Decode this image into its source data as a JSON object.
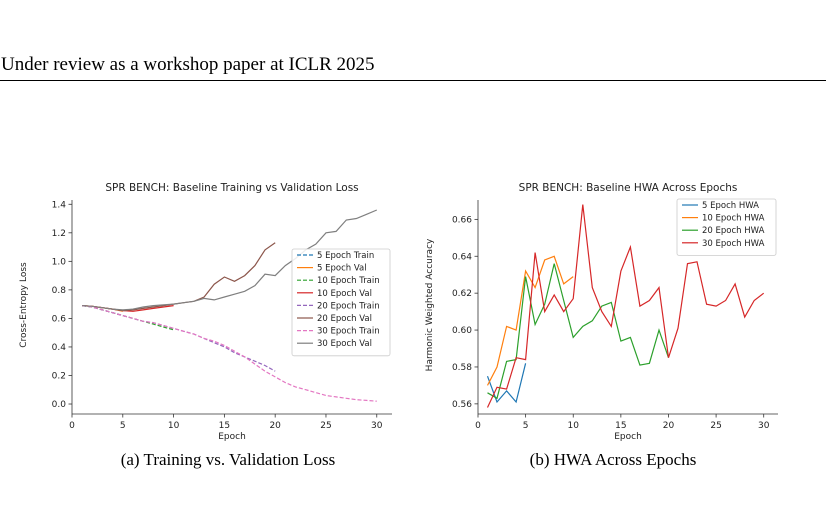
{
  "header": {
    "text": "Under review as a workshop paper at ICLR 2025"
  },
  "captions": [
    "(a) Training vs. Validation Loss",
    "(b) HWA Across Epochs"
  ],
  "chart_data": [
    {
      "type": "line",
      "title": "SPR BENCH: Baseline Training vs Validation Loss",
      "xlabel": "Epoch",
      "ylabel": "Cross-Entropy Loss",
      "xlim": [
        0,
        31.5
      ],
      "ylim": [
        -0.07,
        1.43
      ],
      "xticks": [
        0,
        5,
        10,
        15,
        20,
        25,
        30
      ],
      "yticks": [
        0.0,
        0.2,
        0.4,
        0.6,
        0.8,
        1.0,
        1.2,
        1.4
      ],
      "grid": false,
      "legend": "center-right",
      "series": [
        {
          "name": "5 Epoch Train",
          "color": "#1f77b4",
          "dash": true,
          "x": [
            1,
            2,
            3,
            4,
            5
          ],
          "y": [
            0.69,
            0.68,
            0.66,
            0.64,
            0.62
          ]
        },
        {
          "name": "5 Epoch Val",
          "color": "#ff7f0e",
          "dash": false,
          "x": [
            1,
            2,
            3,
            4,
            5
          ],
          "y": [
            0.69,
            0.685,
            0.675,
            0.665,
            0.65
          ]
        },
        {
          "name": "10 Epoch Train",
          "color": "#2ca02c",
          "dash": true,
          "x": [
            1,
            2,
            3,
            4,
            5,
            6,
            7,
            8,
            9,
            10
          ],
          "y": [
            0.69,
            0.68,
            0.66,
            0.64,
            0.62,
            0.6,
            0.58,
            0.56,
            0.54,
            0.52
          ]
        },
        {
          "name": "10 Epoch Val",
          "color": "#d62728",
          "dash": false,
          "x": [
            1,
            2,
            3,
            4,
            5,
            6,
            7,
            8,
            9,
            10
          ],
          "y": [
            0.69,
            0.685,
            0.675,
            0.665,
            0.655,
            0.65,
            0.66,
            0.67,
            0.68,
            0.69
          ]
        },
        {
          "name": "20 Epoch Train",
          "color": "#9467bd",
          "dash": true,
          "x": [
            1,
            2,
            3,
            4,
            5,
            6,
            7,
            8,
            9,
            10,
            11,
            12,
            13,
            14,
            15,
            16,
            17,
            18,
            19,
            20
          ],
          "y": [
            0.69,
            0.68,
            0.66,
            0.64,
            0.62,
            0.6,
            0.58,
            0.57,
            0.55,
            0.53,
            0.51,
            0.49,
            0.46,
            0.43,
            0.4,
            0.36,
            0.33,
            0.3,
            0.27,
            0.23
          ]
        },
        {
          "name": "20 Epoch Val",
          "color": "#8c564b",
          "dash": false,
          "x": [
            1,
            2,
            3,
            4,
            5,
            6,
            7,
            8,
            9,
            10,
            11,
            12,
            13,
            14,
            15,
            16,
            17,
            18,
            19,
            20
          ],
          "y": [
            0.69,
            0.685,
            0.675,
            0.665,
            0.655,
            0.66,
            0.67,
            0.68,
            0.69,
            0.7,
            0.71,
            0.72,
            0.75,
            0.84,
            0.89,
            0.86,
            0.9,
            0.97,
            1.08,
            1.13
          ]
        },
        {
          "name": "30 Epoch Train",
          "color": "#e377c2",
          "dash": true,
          "x": [
            1,
            2,
            3,
            4,
            5,
            6,
            7,
            8,
            9,
            10,
            11,
            12,
            13,
            14,
            15,
            16,
            17,
            18,
            19,
            20,
            21,
            22,
            23,
            24,
            25,
            26,
            27,
            28,
            29,
            30
          ],
          "y": [
            0.69,
            0.68,
            0.66,
            0.64,
            0.62,
            0.6,
            0.58,
            0.57,
            0.55,
            0.53,
            0.51,
            0.49,
            0.46,
            0.44,
            0.41,
            0.37,
            0.33,
            0.28,
            0.23,
            0.19,
            0.15,
            0.12,
            0.1,
            0.08,
            0.06,
            0.05,
            0.04,
            0.03,
            0.025,
            0.02
          ]
        },
        {
          "name": "30 Epoch Val",
          "color": "#7f7f7f",
          "dash": false,
          "x": [
            1,
            2,
            3,
            4,
            5,
            6,
            7,
            8,
            9,
            10,
            11,
            12,
            13,
            14,
            15,
            16,
            17,
            18,
            19,
            20,
            21,
            22,
            23,
            24,
            25,
            26,
            27,
            28,
            29,
            30
          ],
          "y": [
            0.69,
            0.685,
            0.675,
            0.665,
            0.66,
            0.665,
            0.68,
            0.69,
            0.695,
            0.7,
            0.71,
            0.72,
            0.74,
            0.73,
            0.75,
            0.77,
            0.79,
            0.83,
            0.91,
            0.9,
            0.97,
            1.02,
            1.08,
            1.12,
            1.2,
            1.21,
            1.29,
            1.3,
            1.33,
            1.36
          ]
        }
      ]
    },
    {
      "type": "line",
      "title": "SPR BENCH: Baseline HWA Across Epochs",
      "xlabel": "Epoch",
      "ylabel": "Harmonic Weighted Accuracy",
      "xlim": [
        0,
        31.5
      ],
      "ylim": [
        0.5545,
        0.6705
      ],
      "xticks": [
        0,
        5,
        10,
        15,
        20,
        25,
        30
      ],
      "yticks": [
        0.56,
        0.58,
        0.6,
        0.62,
        0.64,
        0.66
      ],
      "grid": false,
      "legend": "top-right",
      "series": [
        {
          "name": "5 Epoch HWA",
          "color": "#1f77b4",
          "dash": false,
          "x": [
            1,
            2,
            3,
            4,
            5
          ],
          "y": [
            0.575,
            0.561,
            0.567,
            0.561,
            0.582
          ]
        },
        {
          "name": "10 Epoch HWA",
          "color": "#ff7f0e",
          "dash": false,
          "x": [
            1,
            2,
            3,
            4,
            5,
            6,
            7,
            8,
            9,
            10
          ],
          "y": [
            0.57,
            0.58,
            0.602,
            0.6,
            0.632,
            0.623,
            0.638,
            0.64,
            0.625,
            0.629
          ]
        },
        {
          "name": "20 Epoch HWA",
          "color": "#2ca02c",
          "dash": false,
          "x": [
            1,
            2,
            3,
            4,
            5,
            6,
            7,
            8,
            9,
            10,
            11,
            12,
            13,
            14,
            15,
            16,
            17,
            18,
            19,
            20
          ],
          "y": [
            0.566,
            0.563,
            0.583,
            0.584,
            0.629,
            0.603,
            0.614,
            0.636,
            0.616,
            0.596,
            0.602,
            0.605,
            0.613,
            0.615,
            0.594,
            0.596,
            0.581,
            0.582,
            0.6,
            0.585
          ]
        },
        {
          "name": "30 Epoch HWA",
          "color": "#d62728",
          "dash": false,
          "x": [
            1,
            2,
            3,
            4,
            5,
            6,
            7,
            8,
            9,
            10,
            11,
            12,
            13,
            14,
            15,
            16,
            17,
            18,
            19,
            20,
            21,
            22,
            23,
            24,
            25,
            26,
            27,
            28,
            29,
            30
          ],
          "y": [
            0.558,
            0.569,
            0.568,
            0.585,
            0.584,
            0.642,
            0.61,
            0.619,
            0.61,
            0.617,
            0.668,
            0.623,
            0.61,
            0.602,
            0.632,
            0.645,
            0.613,
            0.616,
            0.623,
            0.585,
            0.601,
            0.636,
            0.637,
            0.614,
            0.613,
            0.616,
            0.625,
            0.607,
            0.616,
            0.62
          ]
        }
      ]
    }
  ]
}
